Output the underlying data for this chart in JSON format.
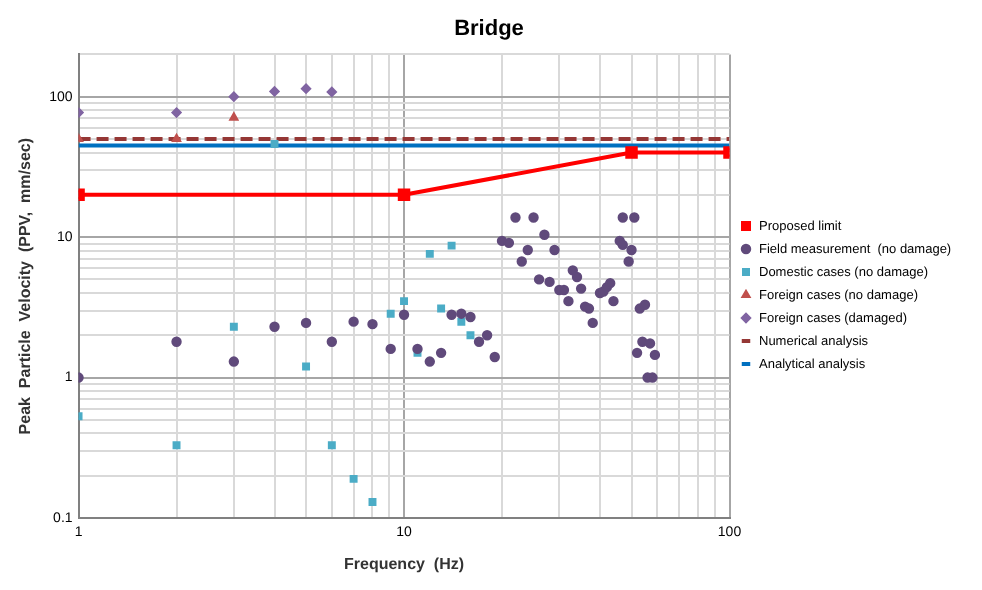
{
  "chart_data": {
    "type": "scatter",
    "title": "Bridge",
    "xlabel": "Frequency  (Hz)",
    "ylabel": "Peak  Particle  Velocity  (PPV,  mm/sec)",
    "log": "xy",
    "grid": true,
    "legend": "right",
    "xlim": [
      1,
      100
    ],
    "ylim": [
      0.1,
      200
    ],
    "xticks": [
      1,
      {
        "value": 2,
        "label": null
      },
      {
        "value": 3,
        "label": null
      },
      {
        "value": 4,
        "label": null
      },
      {
        "value": 5,
        "label": null
      },
      {
        "value": 6,
        "label": null
      },
      {
        "value": 7,
        "label": null
      },
      {
        "value": 8,
        "label": null
      },
      {
        "value": 9,
        "label": null
      },
      10,
      {
        "value": 20,
        "label": null
      },
      {
        "value": 30,
        "label": null
      },
      {
        "value": 40,
        "label": null
      },
      {
        "value": 50,
        "label": null
      },
      {
        "value": 60,
        "label": null
      },
      {
        "value": 70,
        "label": null
      },
      {
        "value": 80,
        "label": null
      },
      {
        "value": 90,
        "label": null
      },
      100
    ],
    "yticks": [
      0.1,
      {
        "value": 0.2,
        "label": null
      },
      {
        "value": 0.3,
        "label": null
      },
      {
        "value": 0.4,
        "label": null
      },
      {
        "value": 0.5,
        "label": null
      },
      {
        "value": 0.6,
        "label": null
      },
      {
        "value": 0.7,
        "label": null
      },
      {
        "value": 0.8,
        "label": null
      },
      {
        "value": 0.9,
        "label": null
      },
      1,
      {
        "value": 2,
        "label": null
      },
      {
        "value": 3,
        "label": null
      },
      {
        "value": 4,
        "label": null
      },
      {
        "value": 5,
        "label": null
      },
      {
        "value": 6,
        "label": null
      },
      {
        "value": 7,
        "label": null
      },
      {
        "value": 8,
        "label": null
      },
      {
        "value": 9,
        "label": null
      },
      10,
      {
        "value": 20,
        "label": null
      },
      {
        "value": 30,
        "label": null
      },
      {
        "value": 40,
        "label": null
      },
      {
        "value": 50,
        "label": null
      },
      {
        "value": 60,
        "label": null
      },
      {
        "value": 70,
        "label": null
      },
      {
        "value": 80,
        "label": null
      },
      {
        "value": 90,
        "label": null
      },
      100,
      {
        "value": 200,
        "label": null
      }
    ],
    "series": [
      {
        "name": "Proposed limit",
        "type": "line",
        "color": "#ff0000",
        "marker": "square",
        "line_style": "solid",
        "x": [
          1,
          10,
          50,
          100
        ],
        "values": [
          20,
          20,
          40,
          40
        ]
      },
      {
        "name": "Field measurement  (no damage)",
        "type": "scatter",
        "color": "#604a7b",
        "marker": "circle",
        "x": [
          1,
          2,
          3,
          4,
          5,
          6,
          7,
          8,
          9.1,
          10,
          11,
          12,
          13,
          14,
          15,
          16,
          17,
          18,
          19,
          20,
          21,
          22,
          23,
          24,
          25,
          26,
          27,
          28,
          29,
          30,
          31,
          32,
          33,
          34,
          35,
          36,
          37,
          38,
          40,
          41,
          42,
          43,
          44,
          46,
          47,
          47,
          49,
          50,
          51,
          52,
          53,
          54,
          55,
          56,
          57,
          58,
          59
        ],
        "values": [
          1,
          1.8,
          1.3,
          2.3,
          2.45,
          1.8,
          2.5,
          2.4,
          1.6,
          2.8,
          1.6,
          1.3,
          1.5,
          2.8,
          2.85,
          2.7,
          1.8,
          2,
          1.4,
          9.4,
          9.1,
          13.8,
          6.7,
          8.1,
          13.8,
          5,
          10.4,
          4.8,
          8.1,
          4.2,
          4.2,
          3.5,
          5.8,
          5.2,
          4.3,
          3.2,
          3.1,
          2.45,
          4,
          4.1,
          4.4,
          4.7,
          3.5,
          9.4,
          8.8,
          13.8,
          6.7,
          8.1,
          13.8,
          1.5,
          3.1,
          1.8,
          3.3,
          1,
          1.75,
          1,
          1.45
        ]
      },
      {
        "name": "Domestic cases (no damage)",
        "type": "scatter",
        "color": "#4bacc6",
        "marker": "square",
        "x": [
          1,
          2,
          3,
          4,
          5,
          6,
          7,
          8,
          9.1,
          10,
          11,
          12,
          13,
          14,
          15,
          16
        ],
        "values": [
          0.53,
          0.33,
          2.3,
          46,
          1.2,
          0.33,
          0.19,
          0.13,
          2.85,
          3.5,
          1.5,
          7.6,
          3.1,
          8.7,
          2.5,
          2
        ]
      },
      {
        "name": "Foreign cases (no damage)",
        "type": "scatter",
        "color": "#c0504d",
        "marker": "triangle",
        "x": [
          1,
          2,
          3
        ],
        "values": [
          50,
          50,
          71
        ]
      },
      {
        "name": "Foreign cases (damaged)",
        "type": "scatter",
        "color": "#8064a2",
        "marker": "diamond",
        "x": [
          1,
          2,
          3,
          4,
          5,
          6
        ],
        "values": [
          77,
          77,
          100,
          109,
          114,
          108
        ]
      },
      {
        "name": "Numerical analysis",
        "type": "line",
        "color": "#953735",
        "marker": "none",
        "line_style": "dashed",
        "x": [
          1,
          100
        ],
        "values": [
          50,
          50
        ]
      },
      {
        "name": "Analytical analysis",
        "type": "line",
        "color": "#0070c0",
        "marker": "none",
        "line_style": "solid",
        "x": [
          1,
          100
        ],
        "values": [
          45,
          45
        ]
      }
    ]
  }
}
